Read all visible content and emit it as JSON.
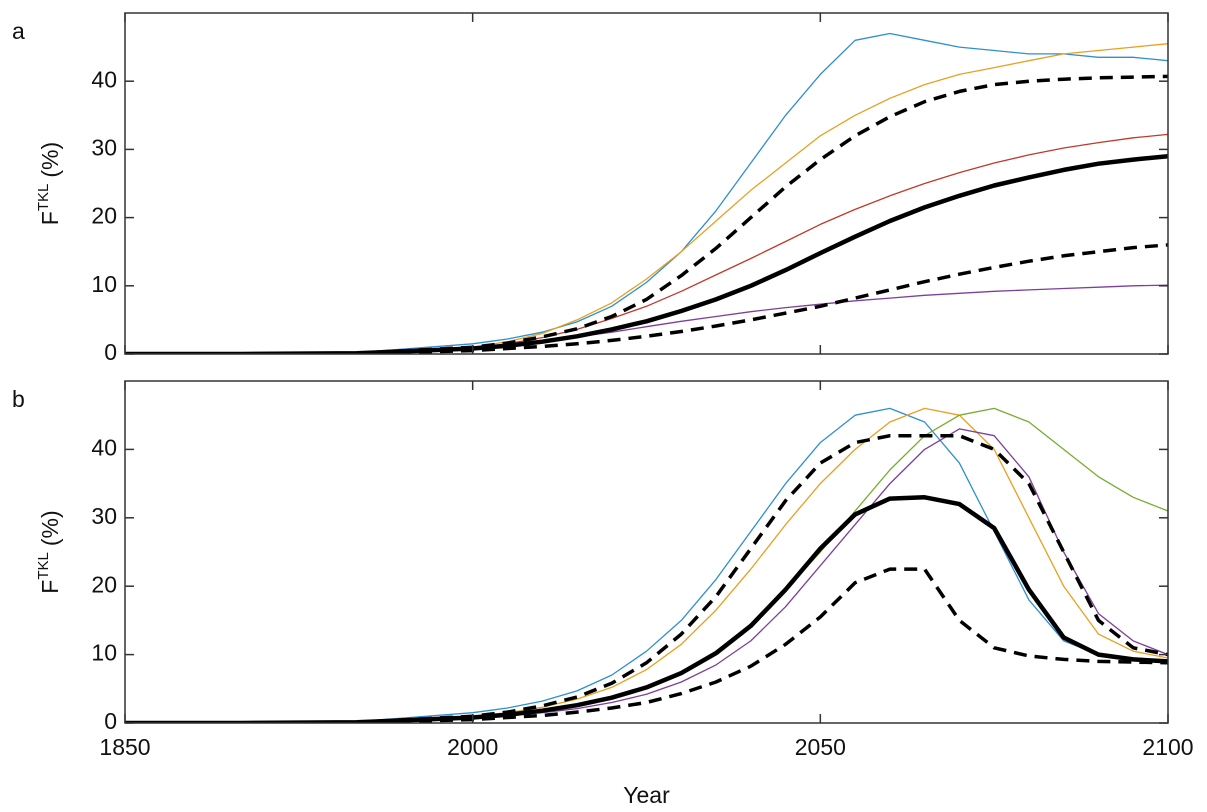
{
  "chart_data": [
    {
      "type": "line",
      "label": "a",
      "ylabel": {
        "base": "F",
        "sup": "TKL",
        "unit": "(%)"
      },
      "show_xtick_labels": false,
      "x": [
        1850,
        1900,
        1950,
        2000,
        2005,
        2010,
        2015,
        2020,
        2025,
        2030,
        2035,
        2040,
        2045,
        2050,
        2055,
        2060,
        2065,
        2070,
        2075,
        2080,
        2085,
        2090,
        2095,
        2100
      ],
      "xlim": [
        1850,
        2100
      ],
      "xticks": [
        1850,
        2000,
        2050,
        2100
      ],
      "ylim": [
        0,
        50
      ],
      "yticks": [
        0,
        10,
        20,
        30,
        40
      ],
      "series": [
        {
          "color": "#2f8fd0",
          "style": "thin",
          "values": [
            0,
            0,
            0.2,
            1.5,
            2.2,
            3.2,
            4.7,
            7,
            10.5,
            15,
            21,
            28,
            35,
            41,
            46,
            47,
            46,
            45,
            44.5,
            44,
            44,
            43.5,
            43.5,
            43
          ]
        },
        {
          "color": "#e8a020",
          "style": "thin",
          "values": [
            0,
            0,
            0.2,
            1,
            1.8,
            3,
            5,
            7.5,
            11,
            15,
            19.5,
            24,
            28,
            32,
            35,
            37.5,
            39.5,
            41,
            42,
            43,
            44,
            44.5,
            45,
            45.5
          ]
        },
        {
          "color": "#7e3f98",
          "style": "thin",
          "values": [
            0,
            0,
            0.1,
            0.8,
            1.2,
            1.8,
            2.5,
            3.2,
            4,
            4.8,
            5.5,
            6.2,
            6.8,
            7.3,
            7.8,
            8.2,
            8.6,
            8.9,
            9.2,
            9.4,
            9.6,
            9.8,
            10,
            10.1
          ]
        },
        {
          "color": "#c0392b",
          "style": "thin",
          "values": [
            0,
            0,
            0.1,
            0.9,
            1.5,
            2.4,
            3.6,
            5.2,
            7,
            9.2,
            11.6,
            14,
            16.5,
            19,
            21.2,
            23.2,
            25,
            26.6,
            28,
            29.2,
            30.2,
            31,
            31.7,
            32.2
          ]
        },
        {
          "color": "#000000",
          "style": "dashed",
          "values": [
            0,
            0,
            0.1,
            1,
            1.6,
            2.5,
            3.7,
            5.5,
            8,
            11.5,
            15.5,
            20,
            24.5,
            28.5,
            32,
            34.8,
            37,
            38.5,
            39.5,
            40,
            40.3,
            40.5,
            40.6,
            40.7
          ]
        },
        {
          "color": "#000000",
          "style": "solid",
          "values": [
            0,
            0,
            0.1,
            0.8,
            1.2,
            1.8,
            2.6,
            3.6,
            4.8,
            6.3,
            8,
            10,
            12.3,
            14.8,
            17.2,
            19.5,
            21.5,
            23.2,
            24.7,
            25.9,
            27,
            27.9,
            28.5,
            29
          ]
        },
        {
          "color": "#000000",
          "style": "dashed",
          "values": [
            0,
            0,
            0.05,
            0.5,
            0.8,
            1.1,
            1.5,
            2,
            2.6,
            3.3,
            4.1,
            5,
            6,
            7,
            8.2,
            9.4,
            10.6,
            11.7,
            12.7,
            13.6,
            14.4,
            15,
            15.6,
            16
          ]
        }
      ]
    },
    {
      "type": "line",
      "label": "b",
      "ylabel": {
        "base": "F",
        "sup": "TKL",
        "unit": "(%)"
      },
      "xlabel": "Year",
      "x": [
        1850,
        1900,
        1950,
        2000,
        2005,
        2010,
        2015,
        2020,
        2025,
        2030,
        2035,
        2040,
        2045,
        2050,
        2055,
        2060,
        2065,
        2070,
        2075,
        2080,
        2085,
        2090,
        2095,
        2100
      ],
      "xlim": [
        1850,
        2100
      ],
      "xticks": [
        1850,
        2000,
        2050,
        2100
      ],
      "ylim": [
        0,
        50
      ],
      "yticks": [
        0,
        10,
        20,
        30,
        40
      ],
      "series": [
        {
          "color": "#2f8fd0",
          "style": "thin",
          "values": [
            0,
            0,
            0.2,
            1.5,
            2.2,
            3.2,
            4.7,
            7,
            10.5,
            15,
            21,
            28,
            35,
            41,
            45,
            46,
            44,
            38,
            28,
            18,
            12,
            10,
            9.5,
            9
          ]
        },
        {
          "color": "#e8a020",
          "style": "thin",
          "values": [
            0,
            0,
            0.2,
            1,
            1.5,
            2.3,
            3.5,
            5.2,
            7.8,
            11.5,
            16.5,
            22.5,
            29,
            35,
            40,
            44,
            46,
            45,
            40,
            30,
            20,
            13,
            10.5,
            9.5
          ]
        },
        {
          "color": "#77ac30",
          "style": "thin",
          "values": [
            0,
            0,
            0.1,
            0.8,
            1.2,
            1.7,
            2.5,
            3.6,
            5.2,
            7.5,
            10.5,
            14.5,
            19.5,
            25,
            31,
            37,
            42,
            45,
            46,
            44,
            40,
            36,
            33,
            31
          ]
        },
        {
          "color": "#7e3f98",
          "style": "thin",
          "values": [
            0,
            0,
            0.1,
            0.8,
            1.1,
            1.5,
            2.1,
            3,
            4.2,
            6,
            8.5,
            12,
            17,
            23,
            29,
            35,
            40,
            43,
            42,
            36,
            25,
            16,
            12,
            10
          ]
        },
        {
          "color": "#000000",
          "style": "dashed",
          "values": [
            0,
            0,
            0.1,
            1,
            1.6,
            2.5,
            3.8,
            5.8,
            8.8,
            13,
            18.5,
            25.5,
            32.5,
            38,
            41,
            42,
            42,
            42,
            40,
            35,
            25,
            15,
            11,
            10
          ]
        },
        {
          "color": "#000000",
          "style": "solid",
          "values": [
            0,
            0,
            0.1,
            0.8,
            1.2,
            1.8,
            2.6,
            3.7,
            5.2,
            7.3,
            10.2,
            14.2,
            19.5,
            25.5,
            30.5,
            32.8,
            33,
            32,
            28.5,
            19.5,
            12.5,
            10,
            9.3,
            9
          ]
        },
        {
          "color": "#000000",
          "style": "dashed",
          "values": [
            0,
            0,
            0.05,
            0.5,
            0.8,
            1.1,
            1.6,
            2.2,
            3,
            4.3,
            6,
            8.3,
            11.5,
            15.5,
            20.5,
            22.5,
            22.5,
            15,
            11,
            9.8,
            9.3,
            9,
            8.9,
            8.8
          ]
        }
      ]
    }
  ]
}
